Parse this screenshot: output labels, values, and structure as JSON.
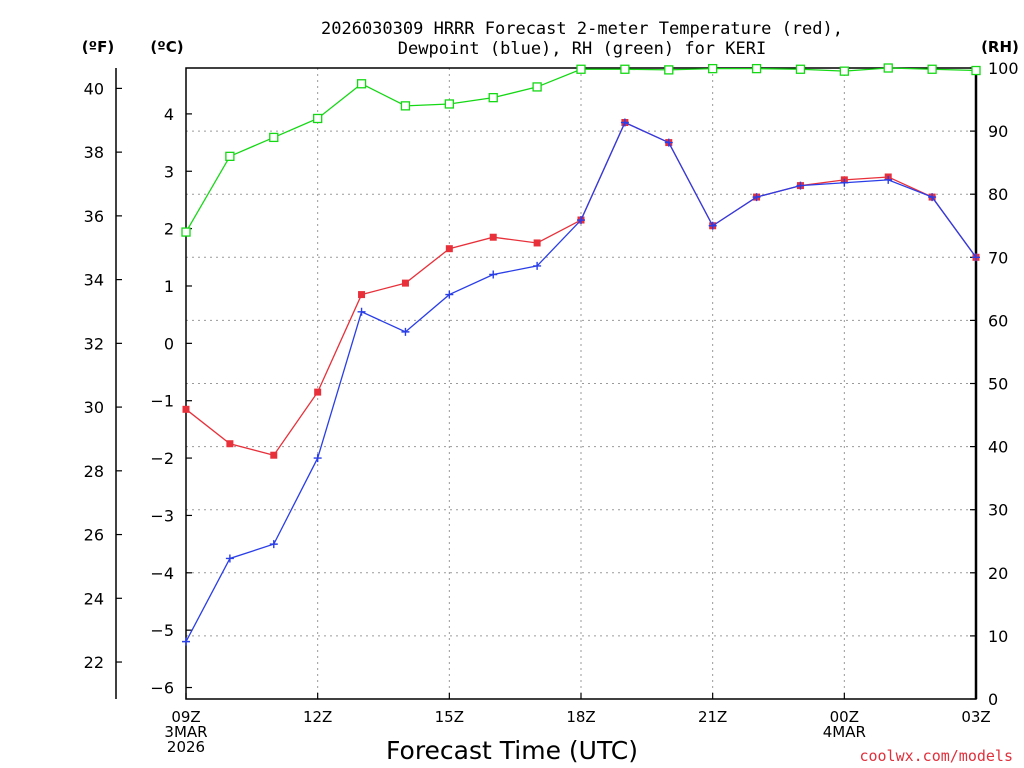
{
  "chart_data": {
    "type": "line",
    "title_line1": "2026030309 HRRR Forecast 2-meter Temperature (red),",
    "title_line2": "Dewpoint (blue), RH (green) for KERI",
    "xlabel": "Forecast Time (UTC)",
    "credit": "coolwx.com/models",
    "unit_f": "(ºF)",
    "unit_c": "(ºC)",
    "unit_rh": "(RH)",
    "x_hours": [
      0,
      1,
      2,
      3,
      4,
      5,
      6,
      7,
      8,
      9,
      10,
      11,
      12,
      13,
      14,
      15,
      16,
      17,
      18
    ],
    "xlim": [
      0,
      18
    ],
    "x_ticks": [
      {
        "hour": 0,
        "lines": [
          "09Z",
          "3MAR",
          "2026"
        ]
      },
      {
        "hour": 3,
        "lines": [
          "12Z"
        ]
      },
      {
        "hour": 6,
        "lines": [
          "15Z"
        ]
      },
      {
        "hour": 9,
        "lines": [
          "18Z"
        ]
      },
      {
        "hour": 12,
        "lines": [
          "21Z"
        ]
      },
      {
        "hour": 15,
        "lines": [
          "00Z",
          "4MAR"
        ]
      },
      {
        "hour": 18,
        "lines": [
          "03Z"
        ]
      }
    ],
    "ylim_c": [
      -6.2,
      4.8
    ],
    "yticks_c": [
      "-6",
      "-5",
      "-4",
      "-3",
      "-2",
      "-1",
      "0",
      "1",
      "2",
      "3",
      "4"
    ],
    "yticks_f": [
      "22",
      "24",
      "26",
      "28",
      "30",
      "32",
      "34",
      "36",
      "38",
      "40"
    ],
    "ylim_rh": [
      0,
      100
    ],
    "yticks_rh": [
      "0",
      "10",
      "20",
      "30",
      "40",
      "50",
      "60",
      "70",
      "80",
      "90",
      "100"
    ],
    "series": [
      {
        "name": "Temperature",
        "units": "C",
        "color": "#e8303a",
        "marker": "square",
        "values": [
          -1.15,
          -1.75,
          -1.95,
          -0.85,
          0.85,
          1.05,
          1.65,
          1.85,
          1.75,
          2.15,
          3.85,
          3.5,
          2.05,
          2.55,
          2.75,
          2.85,
          2.9,
          2.55,
          1.5
        ]
      },
      {
        "name": "Dewpoint",
        "units": "C",
        "color": "#2a3ee8",
        "marker": "plus",
        "values": [
          -5.2,
          -3.75,
          -3.5,
          -2.0,
          0.55,
          0.2,
          0.85,
          1.2,
          1.35,
          2.15,
          3.85,
          3.5,
          2.05,
          2.55,
          2.75,
          2.8,
          2.85,
          2.55,
          1.5
        ]
      },
      {
        "name": "RH",
        "units": "%",
        "color": "#14d814",
        "marker": "open-square",
        "values": [
          74,
          86,
          89,
          92,
          97.5,
          94,
          94.3,
          95.3,
          97,
          99.8,
          99.8,
          99.7,
          99.9,
          99.9,
          99.8,
          99.5,
          100,
          99.8,
          99.6
        ]
      }
    ]
  }
}
